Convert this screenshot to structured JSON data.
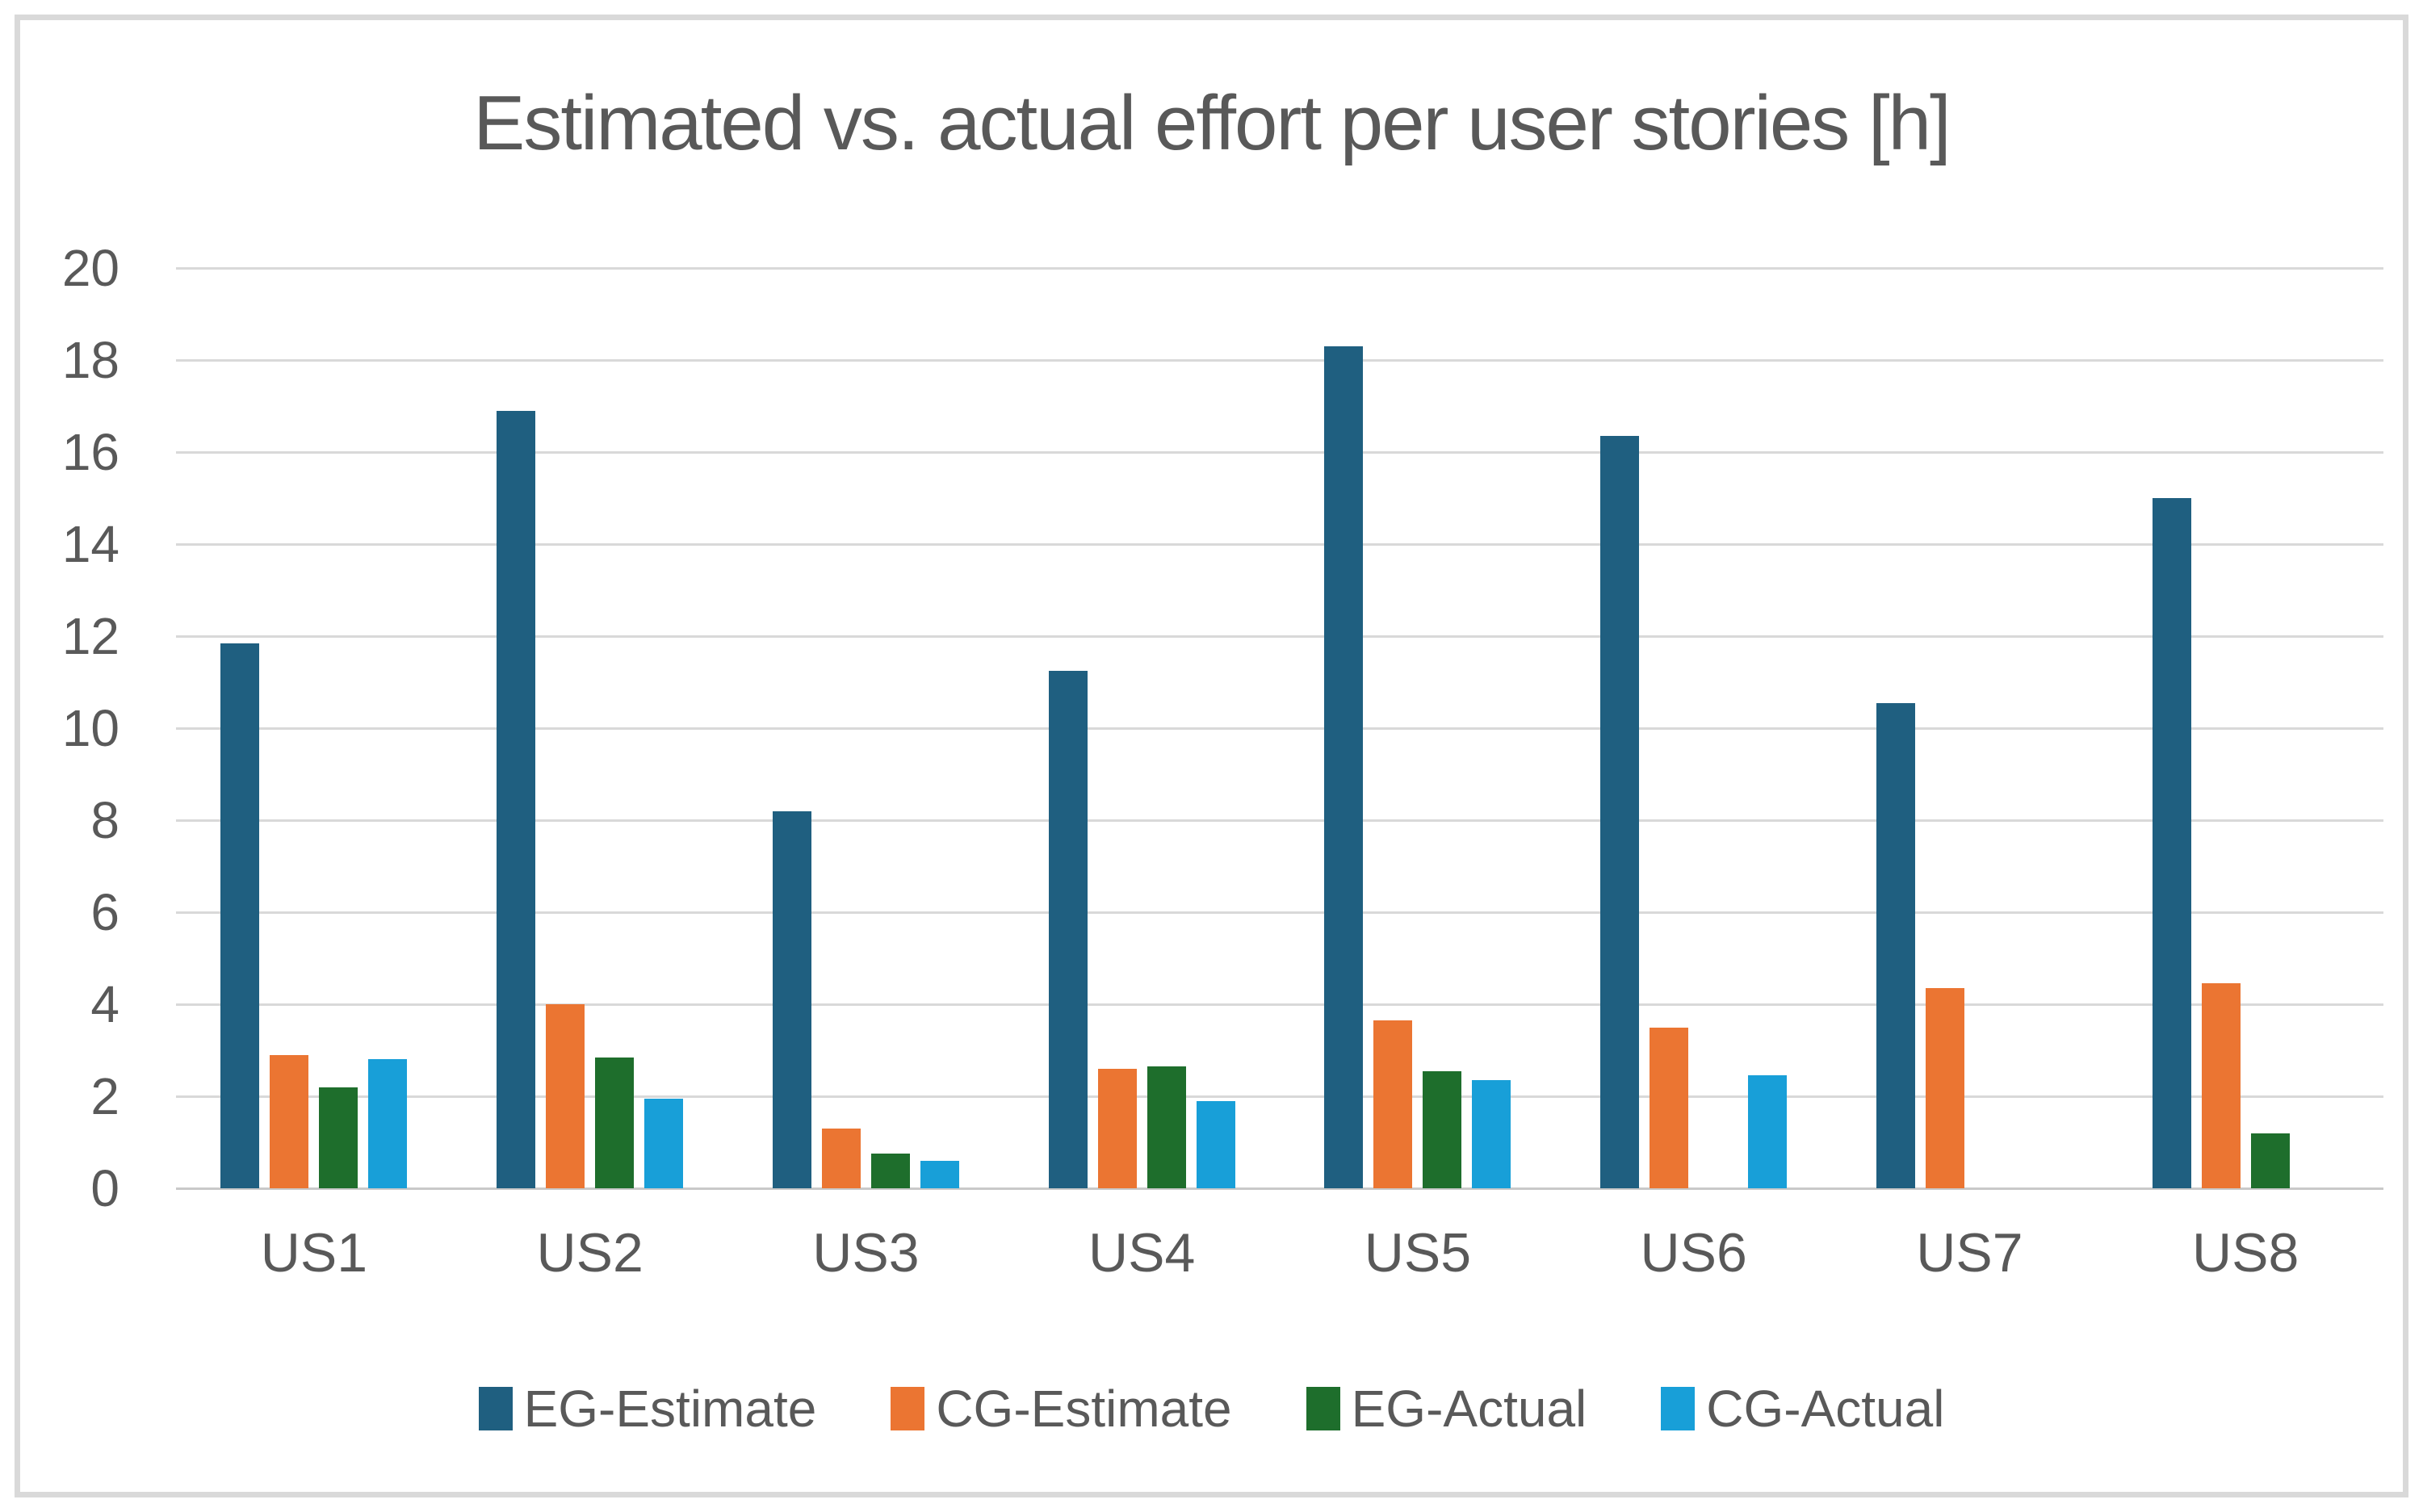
{
  "chart_data": {
    "type": "bar",
    "title": "Estimated vs. actual effort per user stories [h]",
    "categories": [
      "US1",
      "US2",
      "US3",
      "US4",
      "US5",
      "US6",
      "US7",
      "US8"
    ],
    "series": [
      {
        "name": "EG-Estimate",
        "color": "#1F5F80",
        "values": [
          11.85,
          16.9,
          8.2,
          11.25,
          18.3,
          16.35,
          10.55,
          15.0
        ]
      },
      {
        "name": "CG-Estimate",
        "color": "#EB7532",
        "values": [
          2.9,
          4.0,
          1.3,
          2.6,
          3.65,
          3.5,
          4.35,
          4.45
        ]
      },
      {
        "name": "EG-Actual",
        "color": "#1E6E2C",
        "values": [
          2.2,
          2.85,
          0.75,
          2.65,
          2.55,
          null,
          null,
          1.2
        ]
      },
      {
        "name": "CG-Actual",
        "color": "#189FD8",
        "values": [
          2.8,
          1.95,
          0.6,
          1.9,
          2.35,
          2.45,
          null,
          null
        ]
      }
    ],
    "ylim": [
      0,
      20
    ],
    "ytick_step": 2,
    "ytick_labels": [
      "0",
      "2",
      "4",
      "6",
      "8",
      "10",
      "12",
      "14",
      "16",
      "18",
      "20"
    ],
    "grid": true,
    "legend_position": "bottom",
    "colors": {
      "text": "#595959",
      "gridline": "#D9D9D9",
      "axis_line": "#C9C9C9",
      "frame_border": "#D9D9D9",
      "background": "#FFFFFF"
    }
  }
}
